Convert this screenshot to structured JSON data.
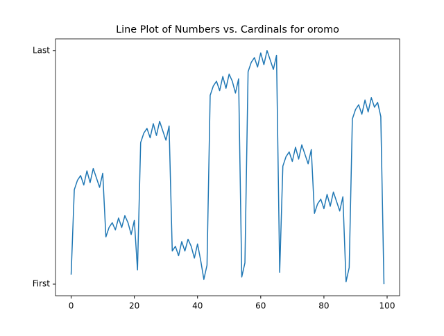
{
  "chart_data": {
    "type": "line",
    "title": "Line Plot of Numbers vs. Cardinals for oromo",
    "x": [
      0,
      1,
      2,
      3,
      4,
      5,
      6,
      7,
      8,
      9,
      10,
      11,
      12,
      13,
      14,
      15,
      16,
      17,
      18,
      19,
      20,
      21,
      22,
      23,
      24,
      25,
      26,
      27,
      28,
      29,
      30,
      31,
      32,
      33,
      34,
      35,
      36,
      37,
      38,
      39,
      40,
      41,
      42,
      43,
      44,
      45,
      46,
      47,
      48,
      49,
      50,
      51,
      52,
      53,
      54,
      55,
      56,
      57,
      58,
      59,
      60,
      61,
      62,
      63,
      64,
      65,
      66,
      67,
      68,
      69,
      70,
      71,
      72,
      73,
      74,
      75,
      76,
      77,
      78,
      79,
      80,
      81,
      82,
      83,
      84,
      85,
      86,
      87,
      88,
      89,
      90,
      91,
      92,
      93,
      94,
      95,
      96,
      97,
      98,
      99
    ],
    "series": [
      {
        "name": "oromo",
        "color": "#1f77b4",
        "values": [
          4,
          40,
          44,
          46,
          42,
          48,
          43,
          49,
          45,
          41,
          47,
          20,
          24,
          26,
          23,
          28,
          24,
          29,
          26,
          21,
          27,
          6,
          60,
          64,
          66,
          62,
          68,
          63,
          69,
          65,
          61,
          67,
          14,
          16,
          12,
          18,
          14,
          19,
          16,
          11,
          17,
          10,
          2,
          8,
          80,
          84,
          86,
          82,
          88,
          83,
          89,
          86,
          81,
          87,
          3,
          9,
          90,
          94,
          96,
          92,
          98,
          93,
          99,
          95,
          91,
          97,
          5,
          50,
          54,
          56,
          52,
          58,
          53,
          59,
          55,
          51,
          57,
          30,
          34,
          36,
          32,
          38,
          33,
          39,
          35,
          31,
          37,
          1,
          7,
          70,
          74,
          76,
          72,
          78,
          73,
          79,
          75,
          77,
          71,
          0
        ]
      }
    ],
    "xlim": [
      -4.95,
      103.95
    ],
    "ylim": [
      -4.95,
      103.95
    ],
    "xticks": [
      0,
      20,
      40,
      60,
      80,
      100
    ],
    "yticks": [
      {
        "value": 0,
        "label": "First"
      },
      {
        "value": 99,
        "label": "Last"
      }
    ]
  }
}
